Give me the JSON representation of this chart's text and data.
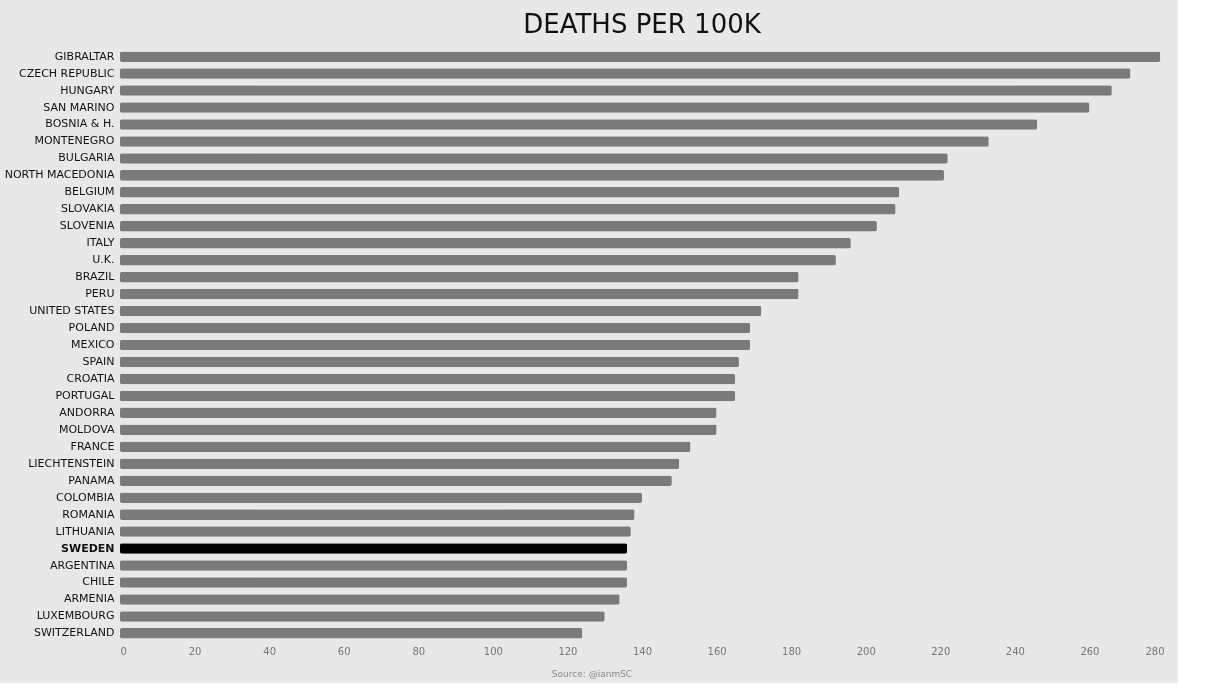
{
  "chart_data": {
    "type": "bar",
    "orientation": "horizontal",
    "title": "DEATHS PER 100K",
    "categories": [
      "GIBRALTAR",
      "CZECH REPUBLIC",
      "HUNGARY",
      "SAN MARINO",
      "BOSNIA & H.",
      "MONTENEGRO",
      "BULGARIA",
      "NORTH MACEDONIA",
      "BELGIUM",
      "SLOVAKIA",
      "SLOVENIA",
      "ITALY",
      "U.K.",
      "BRAZIL",
      "PERU",
      "UNITED STATES",
      "POLAND",
      "MEXICO",
      "SPAIN",
      "CROATIA",
      "PORTUGAL",
      "ANDORRA",
      "MOLDOVA",
      "FRANCE",
      "LIECHTENSTEIN",
      "PANAMA",
      "COLOMBIA",
      "ROMANIA",
      "LITHUANIA",
      "SWEDEN",
      "ARGENTINA",
      "CHILE",
      "ARMENIA",
      "LUXEMBOURG",
      "SWITZERLAND"
    ],
    "values": [
      279,
      271,
      266,
      260,
      246,
      233,
      222,
      221,
      209,
      208,
      203,
      196,
      192,
      182,
      182,
      172,
      169,
      169,
      166,
      165,
      165,
      160,
      160,
      153,
      150,
      148,
      140,
      138,
      137,
      136,
      136,
      136,
      134,
      130,
      124
    ],
    "colors": [
      "#7a7a7a",
      "#7a7a7a",
      "#7a7a7a",
      "#7a7a7a",
      "#7a7a7a",
      "#7a7a7a",
      "#7a7a7a",
      "#7a7a7a",
      "#7a7a7a",
      "#7a7a7a",
      "#7a7a7a",
      "#7a7a7a",
      "#7a7a7a",
      "#7a7a7a",
      "#7a7a7a",
      "#7a7a7a",
      "#7a7a7a",
      "#7a7a7a",
      "#7a7a7a",
      "#7a7a7a",
      "#7a7a7a",
      "#7a7a7a",
      "#7a7a7a",
      "#7a7a7a",
      "#7a7a7a",
      "#7a7a7a",
      "#7a7a7a",
      "#7a7a7a",
      "#7a7a7a",
      "#000000",
      "#7a7a7a",
      "#7a7a7a",
      "#7a7a7a",
      "#7a7a7a",
      "#7a7a7a"
    ],
    "xlim": [
      0,
      280
    ],
    "xticks": [
      0,
      20,
      40,
      60,
      80,
      100,
      120,
      140,
      160,
      180,
      200,
      220,
      240,
      260,
      280
    ],
    "grid": false,
    "annotations": [
      "Source: @ianmSC"
    ]
  }
}
